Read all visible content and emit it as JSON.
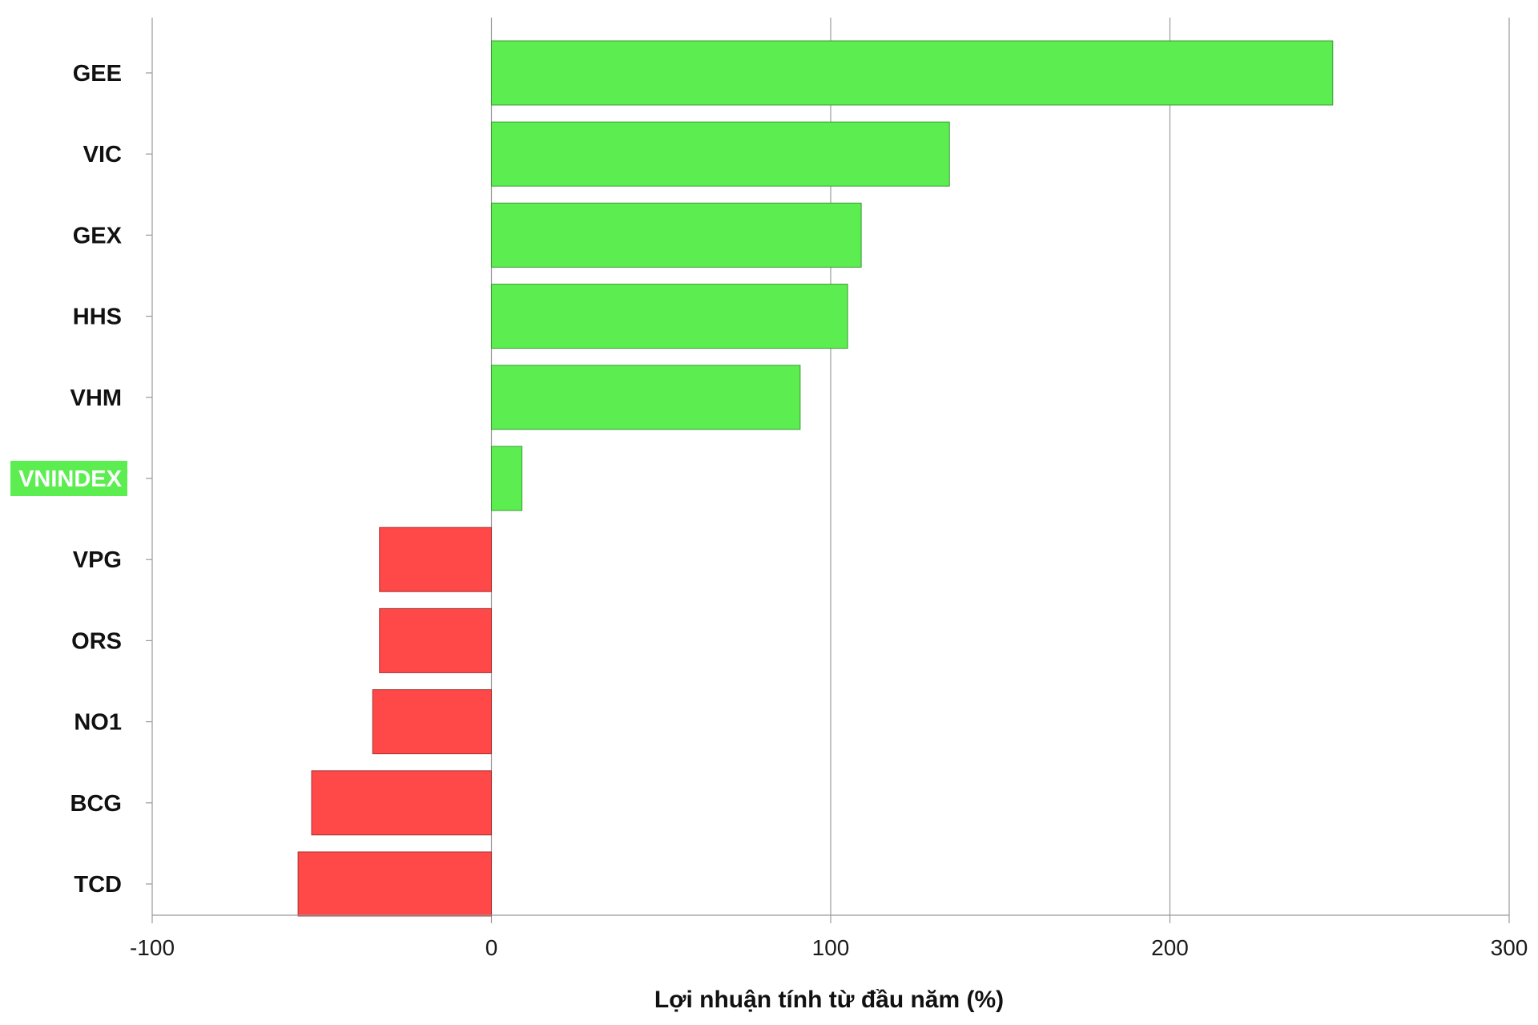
{
  "chart_data": {
    "type": "bar",
    "orientation": "horizontal",
    "categories": [
      "GEE",
      "VIC",
      "GEX",
      "HHS",
      "VHM",
      "VNINDEX",
      "VPG",
      "ORS",
      "NO1",
      "BCG",
      "TCD"
    ],
    "values": [
      248,
      135,
      109,
      105,
      91,
      9,
      -33,
      -33,
      -35,
      -53,
      -57
    ],
    "highlighted_category": "VNINDEX",
    "xlabel": "Lợi nhuận tính từ đầu năm (%)",
    "ylabel": "",
    "title": "",
    "xlim": [
      -100,
      300
    ],
    "xticks": [
      -100,
      0,
      100,
      200,
      300
    ],
    "xtick_labels": [
      "-100",
      "0",
      "100",
      "200",
      "300"
    ],
    "grid": "vertical",
    "legend": "none",
    "colors": {
      "positive": "#5ced51",
      "negative": "#ff4848",
      "positive_edge": "#3a9a34",
      "negative_edge": "#a83030",
      "highlight_bg": "#5ced51",
      "highlight_text": "#ffffff",
      "grid": "#9a9a9a",
      "axis": "#9a9a9a"
    }
  }
}
